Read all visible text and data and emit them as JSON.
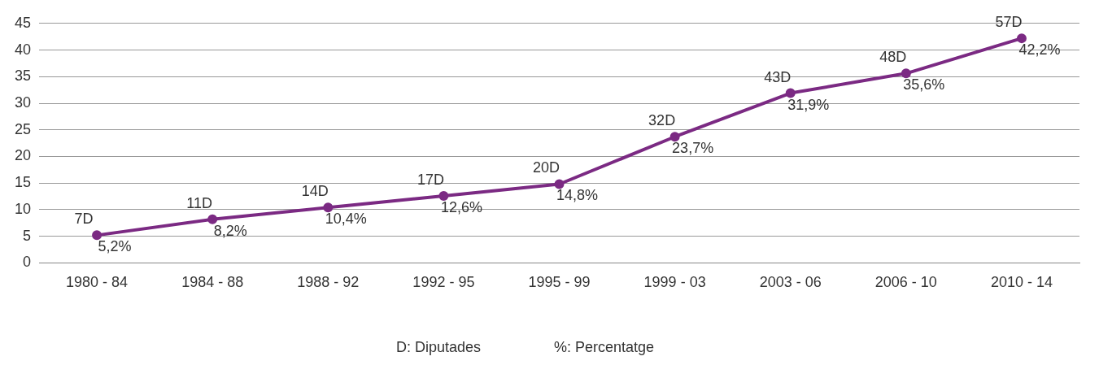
{
  "chart_data": {
    "type": "line",
    "categories": [
      "1980 - 84",
      "1984 - 88",
      "1988 - 92",
      "1992 - 95",
      "1995 - 99",
      "1999 - 03",
      "2003 - 06",
      "2006 - 10",
      "2010 - 14"
    ],
    "series": [
      {
        "color": "#7b2a83",
        "values": [
          5.2,
          8.2,
          10.4,
          12.6,
          14.8,
          23.7,
          31.9,
          35.6,
          42.2
        ],
        "value_labels": [
          "5,2%",
          "8,2%",
          "10,4%",
          "12,6%",
          "14,8%",
          "23,7%",
          "31,9%",
          "35,6%",
          "42,2%"
        ]
      }
    ],
    "ylim": [
      0,
      45
    ],
    "yticks": [
      0,
      5,
      10,
      15,
      20,
      25,
      30,
      35,
      40,
      45
    ],
    "grid": "y",
    "legend": false,
    "marker": "circle",
    "line_style": "solid",
    "annotations": [
      {
        "text": "7D",
        "x": "1980 - 84",
        "y": 5.2
      },
      {
        "text": "11D",
        "x": "1984 - 88",
        "y": 8.2
      },
      {
        "text": "14D",
        "x": "1988 - 92",
        "y": 10.4
      },
      {
        "text": "17D",
        "x": "1992 - 95",
        "y": 12.6
      },
      {
        "text": "20D",
        "x": "1995 - 99",
        "y": 14.8
      },
      {
        "text": "32D",
        "x": "1999 - 03",
        "y": 23.7
      },
      {
        "text": "43D",
        "x": "2003 - 06",
        "y": 31.9
      },
      {
        "text": "48D",
        "x": "2006 - 10",
        "y": 35.6
      },
      {
        "text": "57D",
        "x": "2010 - 14",
        "y": 42.2
      },
      "D: Diputades",
      "%: Percentatge"
    ]
  }
}
